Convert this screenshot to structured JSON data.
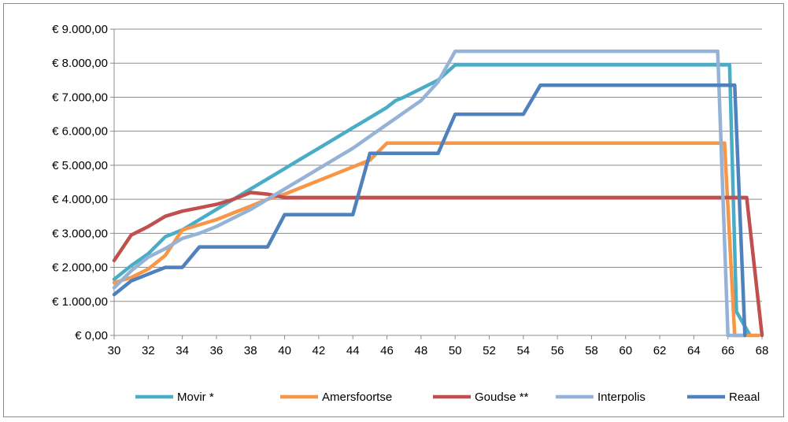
{
  "chart_data": {
    "type": "line",
    "title": "",
    "xlabel": "",
    "ylabel": "",
    "xlim": [
      30,
      68
    ],
    "ylim": [
      0,
      9000
    ],
    "y_ticks": [
      0,
      1000,
      2000,
      3000,
      4000,
      5000,
      6000,
      7000,
      8000,
      9000
    ],
    "y_tick_labels": [
      "€ 0,00",
      "€ 1.000,00",
      "€ 2.000,00",
      "€ 3.000,00",
      "€ 4.000,00",
      "€ 5.000,00",
      "€ 6.000,00",
      "€ 7.000,00",
      "€ 8.000,00",
      "€ 9.000,00"
    ],
    "x_ticks": [
      30,
      32,
      34,
      36,
      38,
      40,
      42,
      44,
      46,
      48,
      50,
      52,
      54,
      56,
      58,
      60,
      62,
      64,
      66,
      68
    ],
    "grid": "horizontal",
    "legend_position": "bottom",
    "series": [
      {
        "name": "Movir *",
        "color": "#4bacc6",
        "points": [
          [
            30,
            1650
          ],
          [
            31,
            2050
          ],
          [
            32,
            2400
          ],
          [
            33,
            2900
          ],
          [
            34,
            3100
          ],
          [
            35,
            3400
          ],
          [
            36,
            3700
          ],
          [
            37,
            4000
          ],
          [
            38,
            4300
          ],
          [
            39,
            4600
          ],
          [
            40,
            4900
          ],
          [
            41,
            5200
          ],
          [
            42,
            5500
          ],
          [
            43,
            5800
          ],
          [
            44,
            6100
          ],
          [
            45,
            6400
          ],
          [
            46,
            6700
          ],
          [
            46.5,
            6900
          ],
          [
            47,
            7000
          ],
          [
            48,
            7250
          ],
          [
            49,
            7500
          ],
          [
            50,
            7950
          ],
          [
            51,
            7950
          ],
          [
            60,
            7950
          ],
          [
            66,
            7950
          ],
          [
            66.1,
            7950
          ],
          [
            66.5,
            700
          ],
          [
            67.3,
            0
          ]
        ]
      },
      {
        "name": "Amersfoortse",
        "color": "#f79646",
        "points": [
          [
            30,
            1550
          ],
          [
            31,
            1700
          ],
          [
            32,
            1950
          ],
          [
            33,
            2350
          ],
          [
            34,
            3100
          ],
          [
            35,
            3250
          ],
          [
            36,
            3400
          ],
          [
            37,
            3600
          ],
          [
            38,
            3800
          ],
          [
            39,
            4000
          ],
          [
            40,
            4150
          ],
          [
            41,
            4350
          ],
          [
            42,
            4550
          ],
          [
            43,
            4750
          ],
          [
            44,
            4950
          ],
          [
            45,
            5150
          ],
          [
            46,
            5650
          ],
          [
            50,
            5650
          ],
          [
            60,
            5650
          ],
          [
            65.8,
            5650
          ],
          [
            66.4,
            0
          ],
          [
            67.8,
            0
          ]
        ]
      },
      {
        "name": "Goudse **",
        "color": "#c0504d",
        "points": [
          [
            30,
            2200
          ],
          [
            31,
            2950
          ],
          [
            32,
            3200
          ],
          [
            33,
            3500
          ],
          [
            34,
            3650
          ],
          [
            35,
            3750
          ],
          [
            36,
            3850
          ],
          [
            37,
            4000
          ],
          [
            38,
            4200
          ],
          [
            39,
            4150
          ],
          [
            40,
            4050
          ],
          [
            46,
            4050
          ],
          [
            66,
            4050
          ],
          [
            66.5,
            4050
          ],
          [
            67.1,
            4050
          ],
          [
            68,
            0
          ]
        ]
      },
      {
        "name": "Interpolis",
        "color": "#95b3d7",
        "points": [
          [
            30,
            1400
          ],
          [
            31,
            1900
          ],
          [
            32,
            2300
          ],
          [
            33,
            2550
          ],
          [
            34,
            2850
          ],
          [
            35,
            3000
          ],
          [
            36,
            3200
          ],
          [
            37,
            3450
          ],
          [
            38,
            3700
          ],
          [
            39,
            4000
          ],
          [
            40,
            4300
          ],
          [
            41,
            4600
          ],
          [
            42,
            4900
          ],
          [
            43,
            5200
          ],
          [
            44,
            5500
          ],
          [
            45,
            5850
          ],
          [
            46,
            6200
          ],
          [
            47,
            6550
          ],
          [
            48,
            6900
          ],
          [
            49,
            7450
          ],
          [
            50,
            8350
          ],
          [
            55,
            8350
          ],
          [
            65,
            8350
          ],
          [
            65.4,
            8350
          ],
          [
            66,
            0
          ],
          [
            67,
            0
          ]
        ]
      },
      {
        "name": "Reaal",
        "color": "#4f81bd",
        "points": [
          [
            30,
            1200
          ],
          [
            31,
            1600
          ],
          [
            32,
            1800
          ],
          [
            33,
            2000
          ],
          [
            34,
            2000
          ],
          [
            35,
            2600
          ],
          [
            36,
            2600
          ],
          [
            39,
            2600
          ],
          [
            40,
            3550
          ],
          [
            41,
            3550
          ],
          [
            44,
            3550
          ],
          [
            45,
            5350
          ],
          [
            46,
            5350
          ],
          [
            49,
            5350
          ],
          [
            50,
            6500
          ],
          [
            51,
            6500
          ],
          [
            54,
            6500
          ],
          [
            55,
            7350
          ],
          [
            56,
            7350
          ],
          [
            66,
            7350
          ],
          [
            66.4,
            7350
          ],
          [
            67,
            0
          ]
        ]
      }
    ]
  }
}
